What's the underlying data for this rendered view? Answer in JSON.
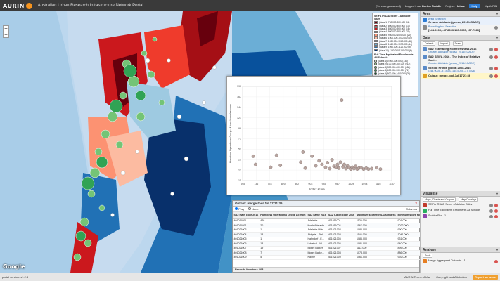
{
  "app": {
    "brand": "AURIN",
    "title": "Australian Urban Research Infrastructure Network Portal",
    "changes": "(No changes saved)",
    "logged_in_as": "Logged in as",
    "user": "Dorien Geddie",
    "project_label": "Project:",
    "project": "Hottas",
    "help": "Help",
    "myaurin": "MyAURIN"
  },
  "legend": {
    "title1": "SEIFA IRSAD Score - Adelaide SA2s",
    "classes1": [
      {
        "label": "(class 1) 750.000-800.000 (11)",
        "color": "#67000d"
      },
      {
        "label": "(class 2) 800.000-850.000 (13)",
        "color": "#a50f15"
      },
      {
        "label": "(class 3) 850.000-900.000 (16)",
        "color": "#cb181d"
      },
      {
        "label": "(class 4) 900.000-950.000 (21)",
        "color": "#ef3b2c"
      },
      {
        "label": "(class 5) 950.000-1000.000 (22)",
        "color": "#fc9272"
      },
      {
        "label": "(class 6) 1000.000-1030.000 (24)",
        "color": "#fcbba1"
      },
      {
        "label": "(class 7) 1030.000-1060.000 (18)",
        "color": "#c6dbef"
      },
      {
        "label": "(class 8) 1060.000-1090.000 (14)",
        "color": "#6baed6"
      },
      {
        "label": "(class 9) 1090.000-1120.000 (9)",
        "color": "#2171b5"
      },
      {
        "label": "(class 10) 1120.000-1150.000 (6)",
        "color": "#08306b"
      }
    ],
    "title2": "Full Time Equivalent Enrolments All Schools",
    "classes2": [
      {
        "label": "(class 1) 0.000-100.000 (134)",
        "color": "#e5f5e0"
      },
      {
        "label": "(class 2) 100.000-300.000 (212)",
        "color": "#a1d99b"
      },
      {
        "label": "(class 3) 300.000-600.000 (186)",
        "color": "#74c476"
      },
      {
        "label": "(class 4) 600.000-900.000 (71)",
        "color": "#31a354"
      },
      {
        "label": "(class 5) 900.000-1400.000 (28)",
        "color": "#006d2c"
      }
    ]
  },
  "chart_data": {
    "type": "scatter",
    "title": "",
    "xlabel": "Index score",
    "ylabel": "Homeless Operational Group All from Homelessness",
    "xlim": [
      695,
      1157
    ],
    "ylim": [
      -15,
      190
    ],
    "x_ticks": [
      "695",
      "736",
      "778",
      "820",
      "862",
      "903",
      "945",
      "987",
      "1029",
      "1074",
      "1116",
      "1157"
    ],
    "y_ticks": [
      "190",
      "167",
      "144",
      "121",
      "98",
      "75",
      "52",
      "29",
      "13",
      "-15"
    ],
    "points": [
      {
        "x": 728,
        "y": 38
      },
      {
        "x": 735,
        "y": 20
      },
      {
        "x": 782,
        "y": 14
      },
      {
        "x": 800,
        "y": 40
      },
      {
        "x": 812,
        "y": 18
      },
      {
        "x": 875,
        "y": 25
      },
      {
        "x": 882,
        "y": 47
      },
      {
        "x": 889,
        "y": 12
      },
      {
        "x": 910,
        "y": 38
      },
      {
        "x": 922,
        "y": 17
      },
      {
        "x": 932,
        "y": 28
      },
      {
        "x": 941,
        "y": 20
      },
      {
        "x": 952,
        "y": 14
      },
      {
        "x": 958,
        "y": 24
      },
      {
        "x": 965,
        "y": 11
      },
      {
        "x": 972,
        "y": 30
      },
      {
        "x": 978,
        "y": 16
      },
      {
        "x": 984,
        "y": 14
      },
      {
        "x": 989,
        "y": 20
      },
      {
        "x": 993,
        "y": 12
      },
      {
        "x": 998,
        "y": 25
      },
      {
        "x": 1002,
        "y": 160
      },
      {
        "x": 1006,
        "y": 15
      },
      {
        "x": 1010,
        "y": 20
      },
      {
        "x": 1015,
        "y": 11
      },
      {
        "x": 1020,
        "y": 17
      },
      {
        "x": 1025,
        "y": 13
      },
      {
        "x": 1030,
        "y": 10
      },
      {
        "x": 1035,
        "y": 14
      },
      {
        "x": 1040,
        "y": 11
      },
      {
        "x": 1045,
        "y": 16
      },
      {
        "x": 1050,
        "y": 10
      },
      {
        "x": 1055,
        "y": 12
      },
      {
        "x": 1062,
        "y": 13
      },
      {
        "x": 1070,
        "y": 10
      },
      {
        "x": 1078,
        "y": 12
      },
      {
        "x": 1085,
        "y": 10
      },
      {
        "x": 1095,
        "y": 11
      },
      {
        "x": 1110,
        "y": 13
      },
      {
        "x": 1122,
        "y": 10
      }
    ]
  },
  "table": {
    "title": "Output: merge-tool Jul 17 21:36",
    "opt1": "Flag",
    "opt2": "None",
    "columns_btn": "Columns",
    "columns": [
      "SA2 main code 2016",
      "Homeless Operational Group All from",
      "SA2 name 2016",
      "SA2 9-digit code 2016",
      "Maximum score for SA1s in area",
      "Minimum score for"
    ],
    "rows": [
      [
        "401011001",
        "426",
        "Adelaide",
        "401011001",
        "1120.000",
        "901.000"
      ],
      [
        "401011002",
        "20",
        "North Adelaide",
        "401011002",
        "1167.000",
        "1022.000"
      ],
      [
        "401021003",
        "1",
        "Adelaide Hills",
        "401021003",
        "1086.000",
        "990.000"
      ],
      [
        "401021004",
        "13",
        "Aldgate - Stirli...",
        "401021004",
        "1146.000",
        "1041.000"
      ],
      [
        "401021005",
        "1",
        "Hahndorf - E...",
        "401021005",
        "1086.000",
        "931.000"
      ],
      [
        "401021006",
        "13",
        "Lobethal - W...",
        "401021006",
        "1081.000",
        "940.000"
      ],
      [
        "401021007",
        "19",
        "Mount Barker",
        "401021007",
        "1112.000",
        "895.000"
      ],
      [
        "401021008",
        "7",
        "Mount Barke...",
        "401021008",
        "1073.000",
        "886.000"
      ],
      [
        "401021009",
        "5",
        "Nairne",
        "401021009",
        "1061.000",
        "992.000"
      ]
    ],
    "footer": "Records Number : 103"
  },
  "sidebar": {
    "area": {
      "title": "Area",
      "items": [
        {
          "label": "Area Selection",
          "value": "Greater Adelaide (gccsa_2016/4GADE)"
        },
        {
          "label": "Bounding box Selection",
          "value": "[144.9005, -37.8393,145.5055, -37.7926]"
        }
      ]
    },
    "data": {
      "title": "Data",
      "btn_dataset": "Dataset",
      "btn_import": "Import",
      "btn_draw": "Draw",
      "items": [
        {
          "name": "SA2 Estimating Homelessness 2016",
          "sub": "Greater Adelaide (gccsa_2016/4GADE)"
        },
        {
          "name": "SA2 SEIFA 2016 - The Index of Relative Soci...",
          "sub": "Greater Adelaide (gccsa_2016/4GADE)"
        },
        {
          "name": "School Profile (point) 2008-2016",
          "sub": "[144.9005,-37.8393,145.5055,-37.7926]"
        },
        {
          "name": "Output: merge-tool Jul 17 21:36",
          "sub": ""
        }
      ]
    },
    "visualise": {
      "title": "Visualise",
      "btn1": "Maps, Charts and Graphs",
      "btn2": "Map Overlays",
      "items": [
        "SEIFA IRSAD Score - Adelaide SA2s",
        "Full Time Equivalent Enrolments All Schools",
        "Scatter Plot - 1"
      ]
    },
    "analyse": {
      "title": "Analyse",
      "btn": "Tools",
      "items": [
        "Merge Aggregated Datasets - 1"
      ]
    }
  },
  "footer": {
    "version": "portal version: v1.2.3",
    "terms": "AURIN Terms of Use",
    "copyright": "Copyright and Attribution",
    "bug": "Report an Issue"
  }
}
